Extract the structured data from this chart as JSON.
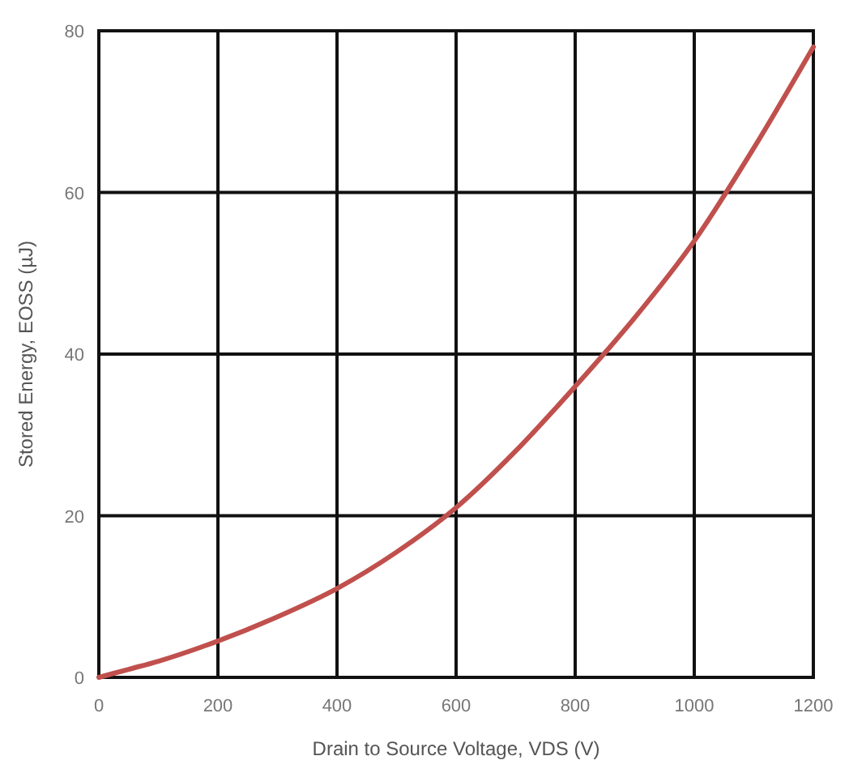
{
  "chart_data": {
    "type": "line",
    "xlabel": "Drain to Source Voltage, VDS (V)",
    "ylabel": "Stored Energy, EOSS (µJ)",
    "x": [
      0,
      50,
      100,
      200,
      300,
      400,
      500,
      600,
      700,
      800,
      900,
      1000,
      1100,
      1200
    ],
    "series": [
      {
        "color": "#c0504d",
        "values": [
          0,
          1,
          2,
          4.5,
          7.5,
          11,
          15.5,
          21,
          28,
          36,
          44.5,
          54,
          65.5,
          78
        ]
      }
    ],
    "xlim": [
      0,
      1200
    ],
    "xticks": [
      0,
      200,
      400,
      600,
      800,
      1000,
      1200
    ],
    "ylim": [
      0,
      80
    ],
    "yticks": [
      0,
      20,
      40,
      60,
      80
    ],
    "grid": true,
    "marker": "none",
    "line_style": "solid"
  }
}
